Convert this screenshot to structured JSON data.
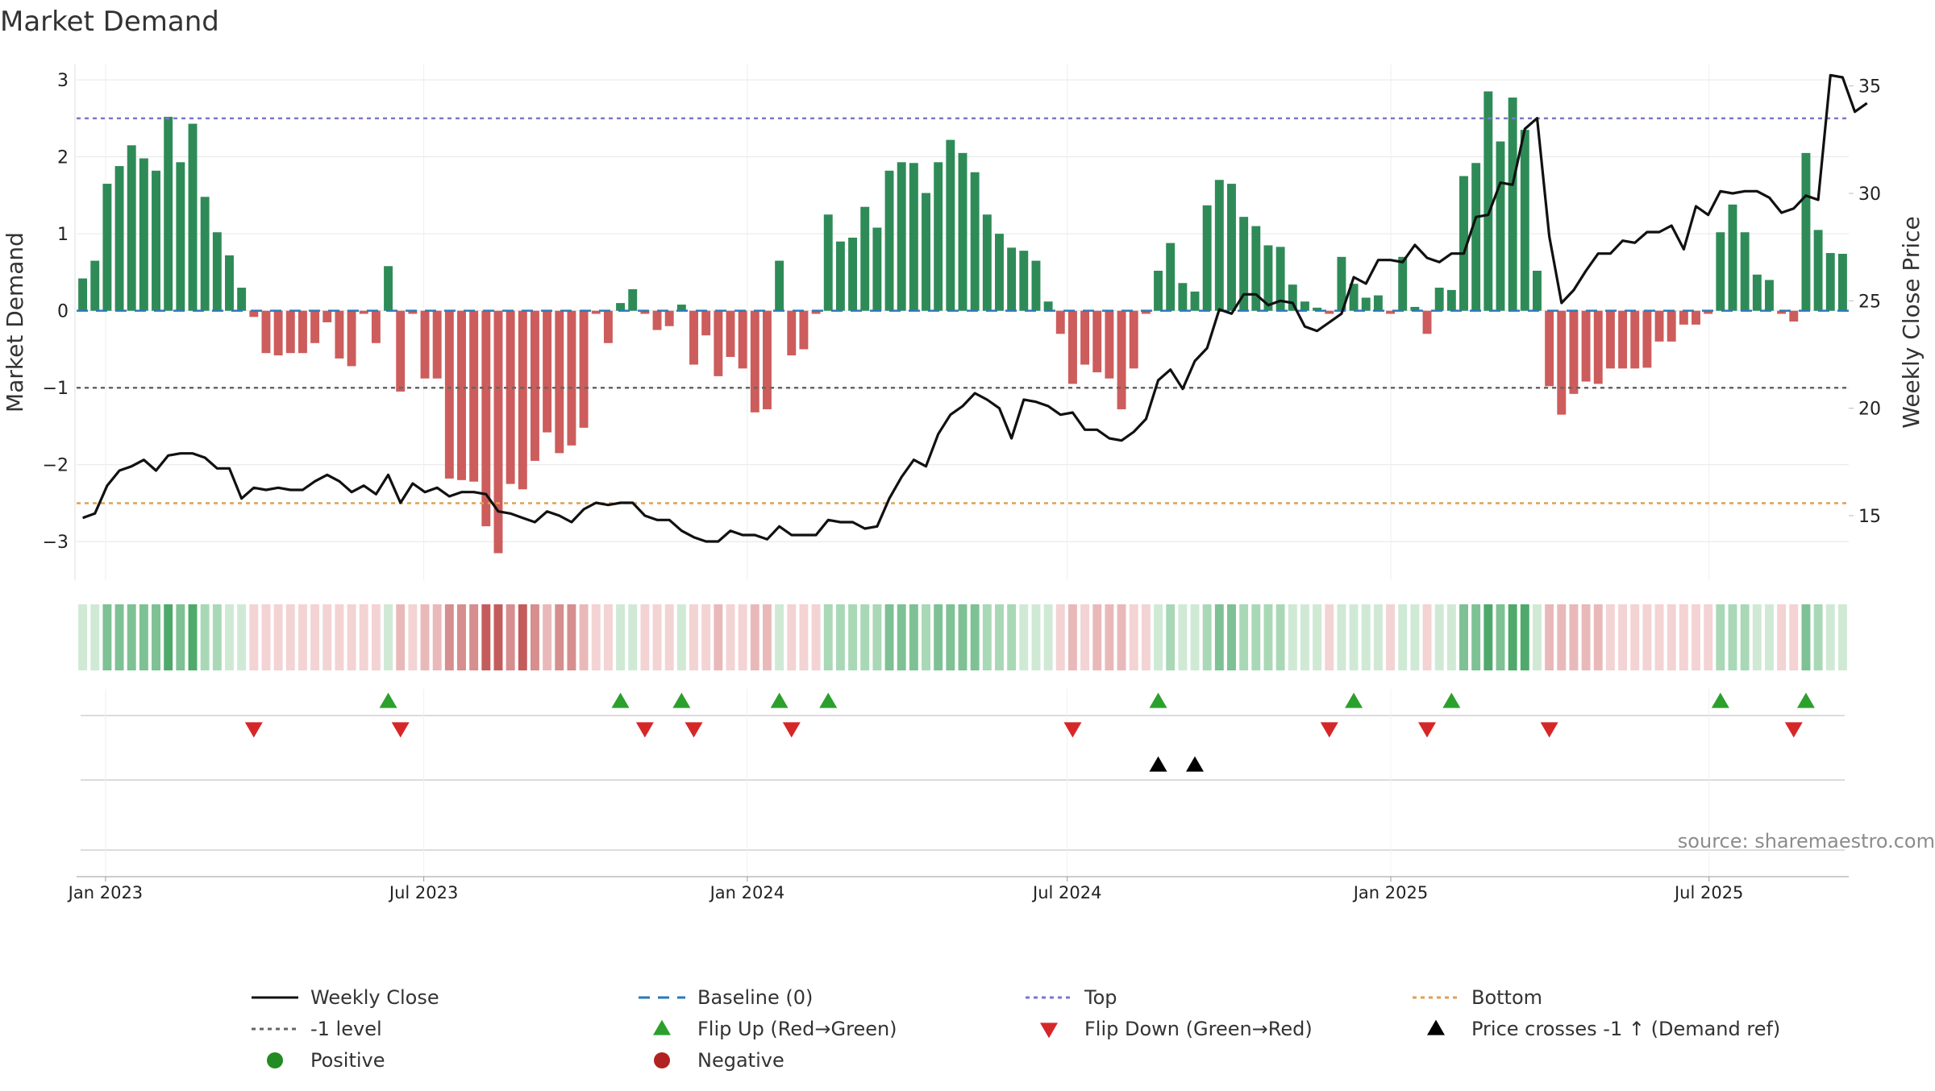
{
  "chart_data": {
    "type": "bar",
    "title": "Market Demand",
    "ylabel_left": "Market Demand",
    "ylabel_right": "Weekly Close Price",
    "source": "source: sharemaestro.com",
    "ylim_left": [
      -3.5,
      3.2
    ],
    "ylim_right": [
      12,
      36
    ],
    "yticks_left": [
      3,
      2,
      1,
      0,
      -1,
      -2,
      -3
    ],
    "yticks_left_labels": [
      "3",
      "2",
      "1",
      "0",
      "−1",
      "−2",
      "−3"
    ],
    "yticks_right": [
      35,
      30,
      25,
      20,
      15
    ],
    "yticks_right_labels": [
      "35",
      "30",
      "25",
      "20",
      "15"
    ],
    "reference_lines": [
      {
        "name": "Top",
        "value": 2.5,
        "color": "#7a78c9"
      },
      {
        "name": "-1 level",
        "value": -1,
        "color": "#666666"
      },
      {
        "name": "Bottom",
        "value": -2.5,
        "color": "#e0a050"
      }
    ],
    "x_dates": [
      "2022-12-19",
      "2025-09-15"
    ],
    "x_tick_labels": [
      "Jan 2023",
      "Jul 2023",
      "Jan 2024",
      "Jul 2024",
      "Jan 2025",
      "Jul 2025"
    ],
    "x_tick_dates": [
      "2023-01-01",
      "2023-07-01",
      "2024-01-01",
      "2024-07-01",
      "2025-01-01",
      "2025-07-01"
    ],
    "demand": [
      0.42,
      0.65,
      1.65,
      1.88,
      2.15,
      1.98,
      1.82,
      2.52,
      1.93,
      2.43,
      1.48,
      1.02,
      0.72,
      0.3,
      -0.08,
      -0.55,
      -0.58,
      -0.55,
      -0.55,
      -0.42,
      -0.15,
      -0.62,
      -0.72,
      -0.04,
      -0.42,
      0.58,
      -1.05,
      -0.04,
      -0.88,
      -0.88,
      -2.18,
      -2.2,
      -2.22,
      -2.8,
      -3.15,
      -2.25,
      -2.32,
      -1.95,
      -1.58,
      -1.85,
      -1.75,
      -1.52,
      -0.04,
      -0.42,
      0.1,
      0.28,
      -0.04,
      -0.25,
      -0.2,
      0.08,
      -0.7,
      -0.32,
      -0.85,
      -0.6,
      -0.75,
      -1.32,
      -1.28,
      0.65,
      -0.58,
      -0.5,
      -0.04,
      1.25,
      0.9,
      0.95,
      1.35,
      1.08,
      1.82,
      1.93,
      1.92,
      1.53,
      1.93,
      2.22,
      2.05,
      1.8,
      1.25,
      1.0,
      0.82,
      0.78,
      0.65,
      0.12,
      -0.3,
      -0.95,
      -0.7,
      -0.8,
      -0.88,
      -1.28,
      -0.75,
      -0.04,
      0.52,
      0.88,
      0.36,
      0.25,
      1.37,
      1.7,
      1.65,
      1.22,
      1.1,
      0.85,
      0.83,
      0.34,
      0.12,
      0.04,
      -0.04,
      0.7,
      0.35,
      0.17,
      0.2,
      -0.04,
      0.7,
      0.05,
      -0.3,
      0.3,
      0.27,
      1.75,
      1.92,
      2.85,
      2.2,
      2.77,
      2.35,
      0.52,
      -0.98,
      -1.35,
      -1.08,
      -0.92,
      -0.95,
      -0.75,
      -0.75,
      -0.75,
      -0.74,
      -0.4,
      -0.4,
      -0.18,
      -0.18,
      -0.04,
      1.02,
      1.38,
      1.02,
      0.47,
      0.4,
      -0.04,
      -0.14,
      2.05,
      1.05,
      0.75,
      0.74
    ],
    "price": [
      14.9,
      15.1,
      16.4,
      17.1,
      17.3,
      17.6,
      17.1,
      17.8,
      17.9,
      17.9,
      17.7,
      17.2,
      17.2,
      15.8,
      16.3,
      16.2,
      16.3,
      16.2,
      16.2,
      16.6,
      16.9,
      16.6,
      16.1,
      16.4,
      16.0,
      16.9,
      15.6,
      16.5,
      16.1,
      16.3,
      15.9,
      16.1,
      16.1,
      16.0,
      15.2,
      15.1,
      14.9,
      14.7,
      15.2,
      15.0,
      14.7,
      15.3,
      15.6,
      15.5,
      15.6,
      15.6,
      15.0,
      14.8,
      14.8,
      14.3,
      14.0,
      13.8,
      13.8,
      14.3,
      14.1,
      14.1,
      13.9,
      14.5,
      14.1,
      14.1,
      14.1,
      14.8,
      14.7,
      14.7,
      14.4,
      14.5,
      15.8,
      16.8,
      17.6,
      17.3,
      18.8,
      19.7,
      20.1,
      20.7,
      20.4,
      20.0,
      18.6,
      20.4,
      20.3,
      20.1,
      19.7,
      19.8,
      19.0,
      19.0,
      18.6,
      18.5,
      18.9,
      19.5,
      21.3,
      21.8,
      20.9,
      22.2,
      22.8,
      24.6,
      24.4,
      25.3,
      25.3,
      24.8,
      25.0,
      24.9,
      23.8,
      23.6,
      24.0,
      24.4,
      26.1,
      25.8,
      26.9,
      26.9,
      26.8,
      27.6,
      27.0,
      26.8,
      27.2,
      27.2,
      28.9,
      29.0,
      30.5,
      30.4,
      33.0,
      33.5,
      28.0,
      24.9,
      25.5,
      26.4,
      27.2,
      27.2,
      27.8,
      27.7,
      28.2,
      28.2,
      28.5,
      27.4,
      29.4,
      29.0,
      30.1,
      30.0,
      30.1,
      30.1,
      29.8,
      29.1,
      29.3,
      29.9,
      29.7,
      35.5,
      35.4,
      33.8,
      34.2
    ],
    "heat_colors": {
      "pos_1": "#cfe9d5",
      "pos_2": "#a9d8b6",
      "pos_3": "#7ec194",
      "pos_4": "#4fa96b",
      "neg_1": "#f3d3d3",
      "neg_2": "#e9b9b9",
      "neg_3": "#d68e8e",
      "neg_4": "#c45c5c"
    },
    "flip_up_idx": [
      25,
      44,
      49,
      57,
      61,
      88,
      104,
      112,
      134,
      141
    ],
    "flip_down_idx": [
      14,
      26,
      46,
      50,
      58,
      81,
      102,
      110,
      120,
      140
    ],
    "price_cross_idx": [
      88,
      91
    ],
    "series": [
      {
        "name": "Weekly Close",
        "color": "#111111"
      },
      {
        "name": "Baseline (0)",
        "color": "#2a7ab8"
      },
      {
        "name": "Top",
        "color": "#7a78c9"
      },
      {
        "name": "Bottom",
        "color": "#e0a050"
      },
      {
        "name": "-1 level",
        "color": "#666666"
      },
      {
        "name": "Flip Up (Red→Green)",
        "color": "#2ca02c"
      },
      {
        "name": "Flip Down (Green→Red)",
        "color": "#d62728"
      },
      {
        "name": "Price crosses -1 ↑ (Demand ref)",
        "color": "#000000"
      },
      {
        "name": "Positive",
        "color": "#2e8b57"
      },
      {
        "name": "Negative",
        "color": "#c9595a"
      }
    ],
    "legend_position": "bottom",
    "grid": true,
    "colors": {
      "positive_bar": "#2e8b57",
      "negative_bar": "#cd5c5c",
      "flip_up": "#2ca02c",
      "flip_down": "#d62728",
      "cross": "#000000",
      "positive_dot": "#228b22",
      "negative_dot": "#b22222"
    }
  }
}
